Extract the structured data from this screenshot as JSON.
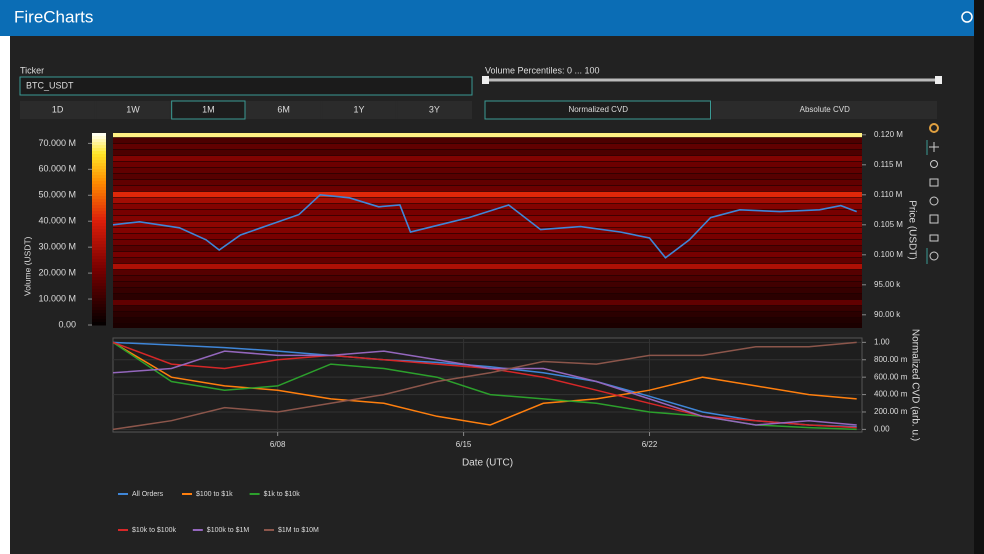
{
  "header": {
    "title": "FireCharts"
  },
  "controls": {
    "ticker_label": "Ticker",
    "ticker_value": "BTC_USDT",
    "ranges": [
      "1D",
      "1W",
      "1M",
      "6M",
      "1Y",
      "3Y"
    ],
    "selected_range": "1M",
    "percentiles_label": "Volume Percentiles: 0 ... 100",
    "cvd_modes": [
      "Normalized CVD",
      "Absolute CVD"
    ],
    "selected_cvd_mode": "Normalized CVD"
  },
  "chart_data": [
    {
      "type": "heatmap",
      "y_label": "Price (USDT)",
      "colorbar_label": "Volume (USDT)",
      "x": [
        1.8,
        2.8,
        4.3,
        5.3,
        5.8,
        6.6,
        7.7,
        8.8,
        9.6,
        10.7,
        11.8,
        12.6,
        13.0,
        14.1,
        15.2,
        16.7,
        17.9,
        19.4,
        20.9,
        22.0,
        22.6,
        23.5,
        24.3,
        25.4,
        26.9,
        28.4,
        29.2,
        29.8
      ],
      "values": [
        105000,
        105500,
        104500,
        102500,
        100800,
        103300,
        105000,
        106700,
        110000,
        109500,
        108000,
        108300,
        103800,
        105000,
        106200,
        108300,
        104200,
        104700,
        103800,
        102800,
        99500,
        102500,
        106200,
        107500,
        107200,
        107500,
        108200,
        107200
      ],
      "color": "#3f86d8",
      "levels": [
        88000,
        89000,
        90000,
        91000,
        92000,
        93000,
        94000,
        95000,
        96000,
        97000,
        98000,
        99000,
        100000,
        101000,
        102000,
        103000,
        104000,
        105000,
        106000,
        107000,
        108000,
        109000,
        110000,
        111000,
        112000,
        113000,
        114000,
        115000,
        116000,
        117000,
        118000,
        119000,
        120000
      ],
      "level_volumes": [
        5000000,
        6000000,
        8000000,
        10000000,
        18000000,
        8000000,
        10000000,
        12000000,
        14000000,
        16000000,
        32000000,
        18000000,
        22000000,
        16000000,
        20000000,
        22000000,
        24000000,
        26000000,
        24000000,
        22000000,
        24000000,
        30000000,
        42000000,
        20000000,
        18000000,
        16000000,
        18000000,
        20000000,
        24000000,
        14000000,
        18000000,
        14000000,
        70000000
      ],
      "xlim": [
        1.8,
        30.0
      ],
      "ylim": [
        87800,
        120300
      ],
      "yticks": [
        {
          "value": 90000,
          "label": "90.00 k"
        },
        {
          "value": 95000,
          "label": "95.00 k"
        },
        {
          "value": 100000,
          "label": "0.100 M"
        },
        {
          "value": 105000,
          "label": "0.105 M"
        },
        {
          "value": 110000,
          "label": "0.110 M"
        },
        {
          "value": 115000,
          "label": "0.115 M"
        },
        {
          "value": 120000,
          "label": "0.120 M"
        }
      ],
      "zlim": [
        0,
        74000000
      ],
      "zticks": [
        {
          "value": 0,
          "label": "0.00"
        },
        {
          "value": 10000000,
          "label": "10.000 M"
        },
        {
          "value": 20000000,
          "label": "20.000 M"
        },
        {
          "value": 30000000,
          "label": "30.000 M"
        },
        {
          "value": 40000000,
          "label": "40.000 M"
        },
        {
          "value": 50000000,
          "label": "50.000 M"
        },
        {
          "value": 60000000,
          "label": "60.000 M"
        },
        {
          "value": 70000000,
          "label": "70.000 M"
        }
      ]
    },
    {
      "type": "line",
      "x_label": "Date (UTC)",
      "y_label": "Normalized CVD (arb. u.)",
      "x": [
        1.8,
        4,
        6,
        8,
        10,
        12,
        14,
        16,
        18,
        20,
        22,
        24,
        26,
        28,
        29.8
      ],
      "xlim": [
        1.8,
        30.0
      ],
      "xticks": [
        {
          "value": 8,
          "label": "6/08"
        },
        {
          "value": 15,
          "label": "6/15"
        },
        {
          "value": 22,
          "label": "6/22"
        }
      ],
      "ylim": [
        -0.03,
        1.05
      ],
      "yticks": [
        {
          "value": 0,
          "label": "0.00"
        },
        {
          "value": 0.2,
          "label": "200.00 m"
        },
        {
          "value": 0.4,
          "label": "400.00 m"
        },
        {
          "value": 0.6,
          "label": "600.00 m"
        },
        {
          "value": 0.8,
          "label": "800.00 m"
        },
        {
          "value": 1,
          "label": "1.00"
        }
      ],
      "grid": true,
      "legend": "bottom-left",
      "series": [
        {
          "name": "All Orders",
          "color": "#3f86d8",
          "values": [
            1.0,
            0.97,
            0.94,
            0.9,
            0.85,
            0.8,
            0.77,
            0.72,
            0.65,
            0.55,
            0.38,
            0.2,
            0.1,
            0.05,
            0.03
          ]
        },
        {
          "name": "$100 to $1k",
          "color": "#ff7f0e",
          "values": [
            1.0,
            0.6,
            0.5,
            0.45,
            0.35,
            0.3,
            0.15,
            0.05,
            0.3,
            0.35,
            0.45,
            0.6,
            0.5,
            0.4,
            0.35
          ]
        },
        {
          "name": "$1k to $10k",
          "color": "#2ca02c",
          "values": [
            1.0,
            0.55,
            0.45,
            0.5,
            0.75,
            0.7,
            0.6,
            0.4,
            0.35,
            0.3,
            0.2,
            0.15,
            0.05,
            0.02,
            0.0
          ]
        },
        {
          "name": "$10k to $100k",
          "color": "#d62728",
          "values": [
            1.0,
            0.75,
            0.7,
            0.8,
            0.85,
            0.8,
            0.75,
            0.7,
            0.6,
            0.45,
            0.3,
            0.15,
            0.1,
            0.05,
            0.02
          ]
        },
        {
          "name": "$100k to $1M",
          "color": "#9467bd",
          "values": [
            0.65,
            0.7,
            0.9,
            0.85,
            0.85,
            0.9,
            0.8,
            0.7,
            0.7,
            0.55,
            0.35,
            0.15,
            0.05,
            0.1,
            0.05
          ]
        },
        {
          "name": "$1M to $10M",
          "color": "#8c564b",
          "values": [
            0.0,
            0.1,
            0.25,
            0.2,
            0.3,
            0.4,
            0.55,
            0.65,
            0.78,
            0.75,
            0.85,
            0.85,
            0.95,
            0.95,
            1.0
          ]
        }
      ]
    }
  ]
}
